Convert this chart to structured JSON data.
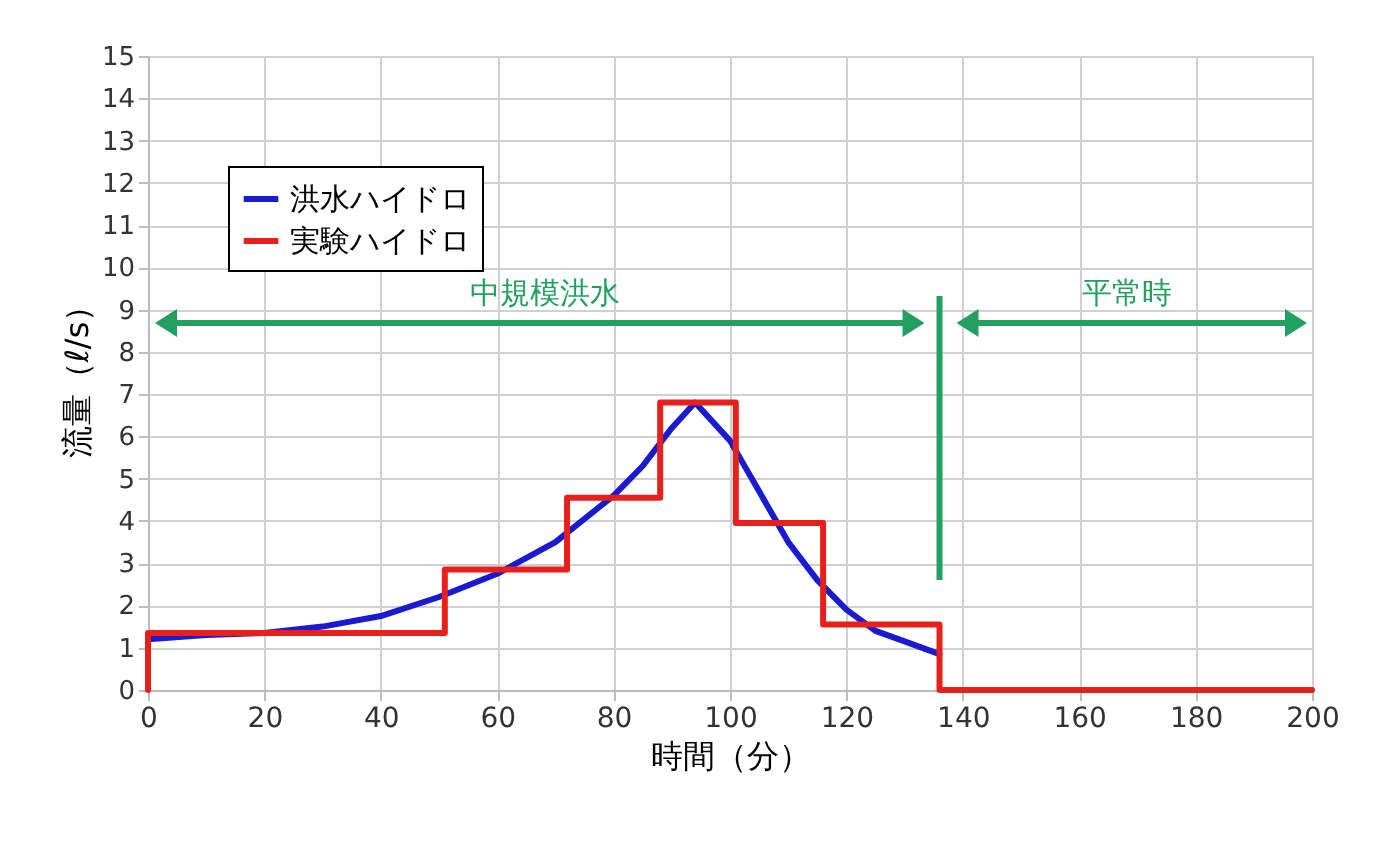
{
  "chart_data": {
    "type": "line",
    "xlabel": "時間（分）",
    "ylabel": "流量（ℓ/s）",
    "xlim": [
      0,
      200
    ],
    "xticks": [
      0,
      20,
      40,
      60,
      80,
      100,
      120,
      140,
      160,
      180,
      200
    ],
    "ylim": [
      0,
      15
    ],
    "yticks": [
      0,
      1,
      2,
      3,
      4,
      5,
      6,
      7,
      8,
      9,
      10,
      11,
      12,
      13,
      14,
      15
    ],
    "grid": true,
    "legend": "top left",
    "series": [
      {
        "name": "洪水ハイドロ",
        "color": "#1a1ad0",
        "x": [
          0,
          10,
          20,
          30,
          40,
          50,
          60,
          70,
          80,
          85,
          90,
          94,
          100,
          105,
          110,
          115,
          120,
          125,
          130,
          136
        ],
        "values": [
          1.2,
          1.3,
          1.35,
          1.5,
          1.75,
          2.2,
          2.75,
          3.5,
          4.6,
          5.3,
          6.2,
          6.8,
          5.9,
          4.7,
          3.5,
          2.6,
          1.9,
          1.4,
          1.15,
          0.85
        ]
      },
      {
        "name": "実験ハイドロ",
        "type": "step",
        "color": "#e8201c",
        "x": [
          0,
          0,
          51,
          72,
          88,
          101,
          116,
          136,
          200
        ],
        "values": [
          0,
          1.35,
          2.85,
          4.55,
          6.8,
          3.95,
          1.55,
          0,
          0
        ]
      }
    ],
    "ref_lines": [
      {
        "axis": "x",
        "value": 136,
        "color": "#22a060"
      }
    ],
    "annotations": [
      "中規模洪水",
      "平常時"
    ]
  }
}
